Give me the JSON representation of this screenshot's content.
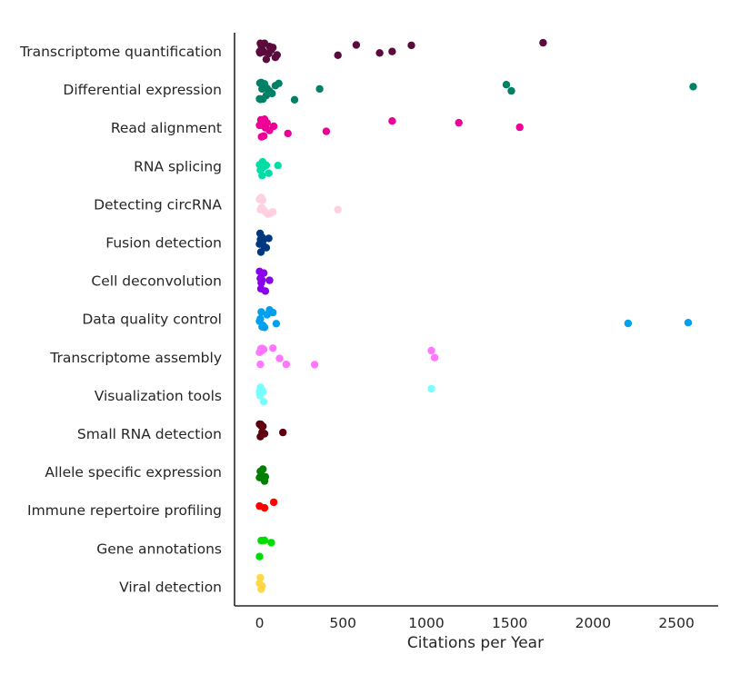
{
  "chart_data": {
    "type": "scatter",
    "xlabel": "Citations per Year",
    "ylabel": "",
    "title": "",
    "xlim": [
      -150,
      2750
    ],
    "xticks": [
      0,
      500,
      1000,
      1500,
      2000,
      2500
    ],
    "grid": false,
    "legend": "none",
    "categories": [
      "Transcriptome quantification",
      "Differential expression",
      "Read alignment",
      "RNA splicing",
      "Detecting circRNA",
      "Fusion detection",
      "Cell deconvolution",
      "Data quality control",
      "Transcriptome assembly",
      "Visualization tools",
      "Small RNA detection",
      "Allele specific expression",
      "Immune repertoire profiling",
      "Gene annotations",
      "Viral detection"
    ],
    "colors": [
      "#5a0a3c",
      "#008066",
      "#ee0096",
      "#00dda6",
      "#ffd0e0",
      "#00387f",
      "#8a00ee",
      "#00a0ee",
      "#ff77ff",
      "#77ffff",
      "#5f0010",
      "#007f00",
      "#ff0000",
      "#00dd00",
      "#ffd845"
    ],
    "series": [
      {
        "category": "Transcriptome quantification",
        "x": [
          0,
          3,
          8,
          12,
          18,
          22,
          30,
          40,
          55,
          70,
          80,
          95,
          105,
          5,
          25,
          60,
          470,
          580,
          720,
          795,
          910,
          1700
        ]
      },
      {
        "category": "Differential expression",
        "x": [
          0,
          5,
          10,
          15,
          20,
          30,
          45,
          60,
          75,
          95,
          115,
          210,
          360,
          1480,
          1510,
          2600,
          2,
          40
        ]
      },
      {
        "category": "Read alignment",
        "x": [
          0,
          4,
          8,
          12,
          18,
          25,
          35,
          45,
          60,
          85,
          170,
          400,
          795,
          1195,
          1560,
          10,
          30
        ]
      },
      {
        "category": "RNA splicing",
        "x": [
          0,
          5,
          10,
          15,
          20,
          25,
          30,
          40,
          55,
          110,
          8,
          18
        ]
      },
      {
        "category": "Detecting circRNA",
        "x": [
          0,
          5,
          10,
          18,
          25,
          35,
          50,
          65,
          80,
          470,
          12
        ]
      },
      {
        "category": "Fusion detection",
        "x": [
          0,
          3,
          6,
          10,
          15,
          20,
          28,
          40,
          55,
          8
        ]
      },
      {
        "category": "Cell deconvolution",
        "x": [
          0,
          5,
          10,
          15,
          25,
          35,
          60,
          8
        ]
      },
      {
        "category": "Data quality control",
        "x": [
          0,
          5,
          10,
          20,
          30,
          45,
          60,
          80,
          100,
          2210,
          2570,
          15
        ]
      },
      {
        "category": "Transcriptome assembly",
        "x": [
          0,
          5,
          10,
          15,
          25,
          80,
          120,
          160,
          330,
          1030,
          1050,
          8
        ]
      },
      {
        "category": "Visualization tools",
        "x": [
          0,
          3,
          6,
          10,
          15,
          20,
          25,
          1030,
          8
        ]
      },
      {
        "category": "Small RNA detection",
        "x": [
          0,
          5,
          10,
          15,
          20,
          30,
          140,
          8
        ]
      },
      {
        "category": "Allele specific expression",
        "x": [
          0,
          5,
          10,
          20,
          30,
          35,
          12
        ]
      },
      {
        "category": "Immune repertoire profiling",
        "x": [
          0,
          30,
          85
        ]
      },
      {
        "category": "Gene annotations",
        "x": [
          0,
          10,
          30,
          70
        ]
      },
      {
        "category": "Viral detection",
        "x": [
          0,
          5,
          10,
          15
        ]
      }
    ]
  }
}
